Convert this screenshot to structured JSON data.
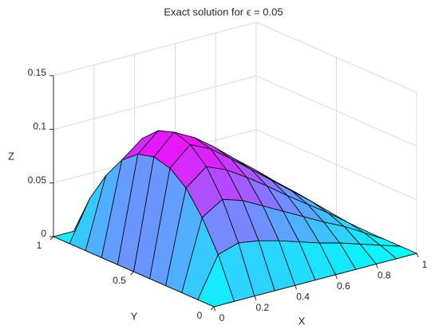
{
  "chart_data": {
    "type": "surface",
    "title": "Exact solution for ϵ = 0.05",
    "xlabel": "X",
    "ylabel": "Y",
    "zlabel": "Z",
    "x": [
      0,
      0.1,
      0.2,
      0.3,
      0.4,
      0.5,
      0.6,
      0.7,
      0.8,
      0.9,
      1
    ],
    "y": [
      0,
      0.1,
      0.2,
      0.3,
      0.4,
      0.5,
      0.6,
      0.7,
      0.8,
      0.9,
      1
    ],
    "z": [
      [
        0,
        0,
        0,
        0,
        0,
        0,
        0,
        0,
        0,
        0,
        0
      ],
      [
        0,
        0.037,
        0.043,
        0.04,
        0.035,
        0.029,
        0.023,
        0.018,
        0.012,
        0.006,
        0
      ],
      [
        0,
        0.065,
        0.077,
        0.071,
        0.061,
        0.051,
        0.041,
        0.031,
        0.022,
        0.011,
        0
      ],
      [
        0,
        0.086,
        0.101,
        0.093,
        0.081,
        0.068,
        0.054,
        0.041,
        0.028,
        0.014,
        0
      ],
      [
        0,
        0.098,
        0.115,
        0.106,
        0.092,
        0.077,
        0.062,
        0.047,
        0.032,
        0.016,
        0
      ],
      [
        0,
        0.102,
        0.12,
        0.11,
        0.096,
        0.08,
        0.065,
        0.049,
        0.034,
        0.017,
        0
      ],
      [
        0,
        0.098,
        0.115,
        0.106,
        0.092,
        0.077,
        0.062,
        0.047,
        0.032,
        0.016,
        0
      ],
      [
        0,
        0.086,
        0.101,
        0.093,
        0.081,
        0.068,
        0.054,
        0.041,
        0.028,
        0.014,
        0
      ],
      [
        0,
        0.065,
        0.077,
        0.071,
        0.061,
        0.051,
        0.041,
        0.031,
        0.022,
        0.011,
        0
      ],
      [
        0,
        0.037,
        0.043,
        0.04,
        0.035,
        0.029,
        0.023,
        0.018,
        0.012,
        0.006,
        0
      ],
      [
        0,
        0,
        0,
        0,
        0,
        0,
        0,
        0,
        0,
        0,
        0
      ]
    ],
    "xlim": [
      0,
      1
    ],
    "ylim": [
      0,
      1
    ],
    "zlim": [
      0,
      0.15
    ],
    "xticks": [
      0,
      0.2,
      0.4,
      0.6,
      0.8,
      1
    ],
    "yticks": [
      0,
      0.5,
      1
    ],
    "zticks": [
      0,
      0.05,
      0.1,
      0.15
    ],
    "colormap": [
      "#00ffff",
      "#ff00ff"
    ],
    "edge_color": "#000000",
    "grid": true
  }
}
